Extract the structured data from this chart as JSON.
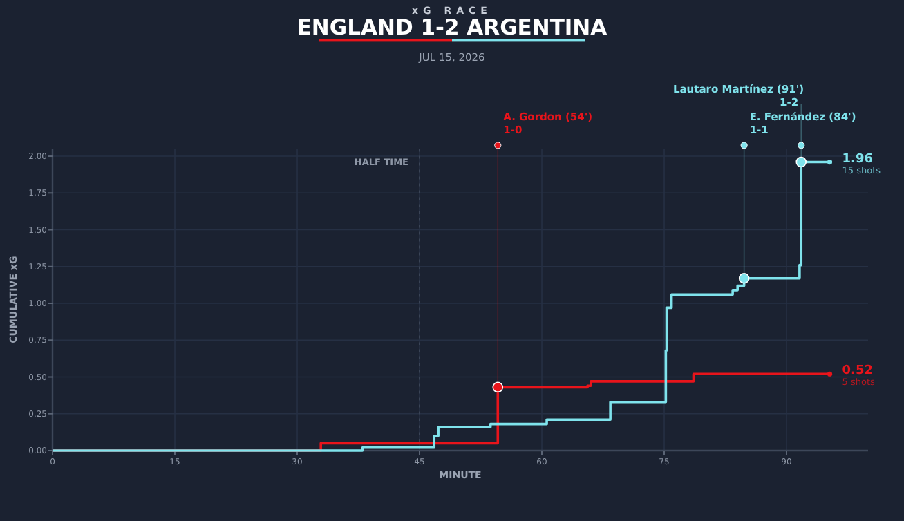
{
  "chart_data": {
    "type": "step",
    "subtitle": "xG RACE",
    "title": "ENGLAND 1-2 ARGENTINA",
    "xlabel": "MINUTE",
    "ylabel": "CUMULATIVE xG",
    "xlim": [
      0,
      100
    ],
    "xticks": [
      0,
      15,
      30,
      45,
      60,
      75,
      90
    ],
    "ylim": [
      0,
      2.05
    ],
    "yticks": [
      {
        "value": 0,
        "label": "0.00"
      },
      {
        "value": 0.25,
        "label": "0.25"
      },
      {
        "value": 0.5,
        "label": "0.50"
      },
      {
        "value": 0.75,
        "label": "0.75"
      },
      {
        "value": 1,
        "label": "1.00"
      },
      {
        "value": 1.25,
        "label": "1.25"
      },
      {
        "value": 1.5,
        "label": "1.50"
      },
      {
        "value": 1.75,
        "label": "1.75"
      },
      {
        "value": 2,
        "label": "2.00"
      }
    ],
    "grid": true,
    "marker": "none",
    "line_style": "solid",
    "series": [
      {
        "color": "#e8141b",
        "x": [
          0,
          32.9,
          54.6,
          65.6,
          66,
          78.6,
          95.3
        ],
        "values": [
          0,
          0.05,
          0.43,
          0.44,
          0.47,
          0.52,
          0.52
        ]
      },
      {
        "color": "#7fe3ec",
        "x": [
          0,
          38,
          46.8,
          47.3,
          53.7,
          60.6,
          68.4,
          75.2,
          75.3,
          75.9,
          83.4,
          84,
          84.8,
          91.6,
          91.8,
          95.3
        ],
        "values": [
          0,
          0.02,
          0.1,
          0.16,
          0.18,
          0.21,
          0.33,
          0.68,
          0.97,
          1.06,
          1.09,
          1.12,
          1.17,
          1.26,
          1.96,
          1.96
        ]
      }
    ],
    "ref_lines": [
      {
        "axis": "x",
        "value": 45,
        "label": "HALF TIME",
        "color": "#3a4456",
        "line_style": "dotted"
      }
    ],
    "annotations": [
      "JUL 15, 2026",
      {
        "text": "A. Gordon (54')\n1-0",
        "x": 54.6,
        "y": 0.43
      },
      {
        "text": "E. Fernández (84')\n1-1",
        "x": 84.8,
        "y": 1.17
      },
      {
        "text": "Lautaro Martínez (91')\n1-2",
        "x": 91.8,
        "y": 1.96
      },
      {
        "text": "1.96\n15 shots",
        "x": 95.3,
        "y": 1.96
      },
      {
        "text": "0.52\n5 shots",
        "x": 95.3,
        "y": 0.52
      }
    ]
  }
}
